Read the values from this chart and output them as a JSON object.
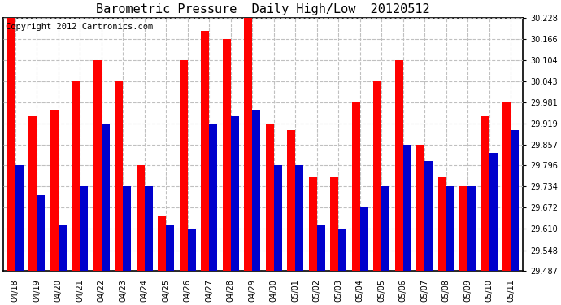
{
  "title": "Barometric Pressure  Daily High/Low  20120512",
  "copyright": "Copyright 2012 Cartronics.com",
  "categories": [
    "04/18",
    "04/19",
    "04/20",
    "04/21",
    "04/22",
    "04/23",
    "04/24",
    "04/25",
    "04/26",
    "04/27",
    "04/28",
    "04/29",
    "04/30",
    "05/01",
    "05/02",
    "05/03",
    "05/04",
    "05/05",
    "05/06",
    "05/07",
    "05/08",
    "05/09",
    "05/10",
    "05/11"
  ],
  "highs": [
    30.228,
    29.94,
    29.96,
    30.043,
    30.104,
    30.043,
    29.796,
    29.65,
    30.104,
    30.19,
    30.166,
    30.228,
    29.919,
    29.9,
    29.762,
    29.762,
    29.981,
    30.043,
    30.104,
    29.857,
    29.762,
    29.734,
    29.94,
    29.981
  ],
  "lows": [
    29.796,
    29.71,
    29.62,
    29.734,
    29.919,
    29.734,
    29.734,
    29.62,
    29.61,
    29.919,
    29.94,
    29.96,
    29.796,
    29.796,
    29.62,
    29.61,
    29.672,
    29.734,
    29.857,
    29.81,
    29.734,
    29.734,
    29.832,
    29.9
  ],
  "ymin": 29.487,
  "ymax": 30.228,
  "yticks": [
    29.487,
    29.548,
    29.61,
    29.672,
    29.734,
    29.796,
    29.857,
    29.919,
    29.981,
    30.043,
    30.104,
    30.166,
    30.228
  ],
  "bar_color_high": "#FF0000",
  "bar_color_low": "#0000CC",
  "background_color": "#FFFFFF",
  "grid_color": "#C0C0C0",
  "title_fontsize": 11,
  "copyright_fontsize": 7.5
}
